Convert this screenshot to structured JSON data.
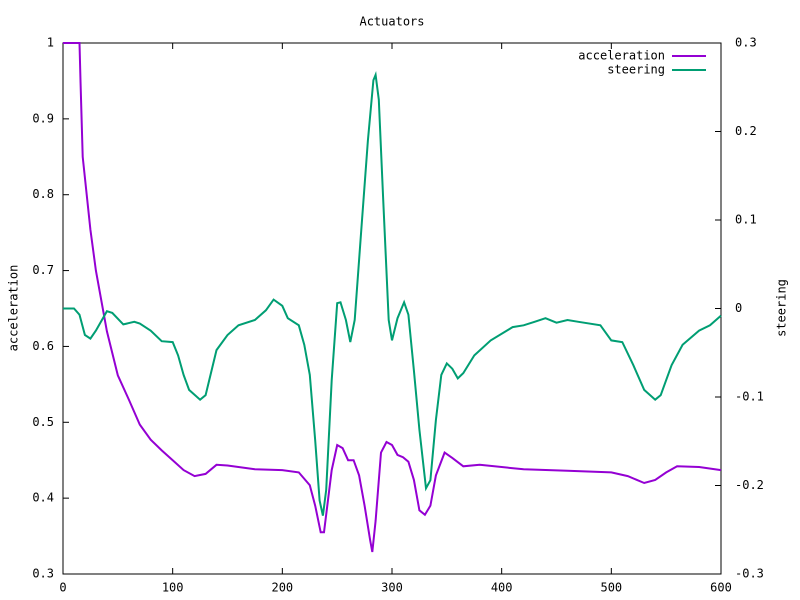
{
  "chart_data": {
    "type": "line",
    "title": "Actuators",
    "y_label": "acceleration",
    "y2_label": "steering",
    "xlim": [
      0,
      600
    ],
    "xticks": [
      0,
      100,
      200,
      300,
      400,
      500,
      600
    ],
    "ylim": [
      0.3,
      1
    ],
    "yticks": [
      0.3,
      0.4,
      0.5,
      0.6,
      0.7,
      0.8,
      0.9,
      1
    ],
    "y2lim": [
      -0.3,
      0.3
    ],
    "y2ticks": [
      -0.3,
      -0.2,
      -0.1,
      0,
      0.1,
      0.2,
      0.3
    ],
    "legend": "top-right",
    "grid": false,
    "series": [
      {
        "name": "acceleration",
        "color": "#9400d3",
        "x": [
          0,
          15,
          16,
          18,
          25,
          30,
          40,
          50,
          60,
          70,
          80,
          90,
          100,
          110,
          120,
          130,
          140,
          150,
          175,
          200,
          215,
          225,
          230,
          235,
          238,
          245,
          250,
          255,
          260,
          265,
          270,
          275,
          280,
          282,
          285,
          290,
          295,
          300,
          305,
          310,
          315,
          320,
          325,
          330,
          335,
          340,
          348,
          355,
          365,
          380,
          420,
          460,
          500,
          515,
          530,
          540,
          550,
          560,
          580,
          600
        ],
        "values": [
          1.0,
          1.0,
          0.95,
          0.85,
          0.754,
          0.7,
          0.62,
          0.562,
          0.53,
          0.497,
          0.477,
          0.463,
          0.45,
          0.437,
          0.429,
          0.432,
          0.444,
          0.443,
          0.438,
          0.437,
          0.434,
          0.417,
          0.39,
          0.355,
          0.355,
          0.437,
          0.47,
          0.466,
          0.45,
          0.45,
          0.43,
          0.39,
          0.345,
          0.329,
          0.37,
          0.46,
          0.474,
          0.47,
          0.457,
          0.454,
          0.448,
          0.424,
          0.384,
          0.378,
          0.39,
          0.43,
          0.46,
          0.453,
          0.442,
          0.444,
          0.438,
          0.436,
          0.434,
          0.429,
          0.42,
          0.424,
          0.434,
          0.442,
          0.441,
          0.437
        ]
      },
      {
        "name": "steering",
        "color": "#009e73",
        "axis": "y2",
        "x": [
          0,
          10,
          15,
          20,
          25,
          30,
          40,
          45,
          55,
          65,
          70,
          80,
          90,
          100,
          105,
          110,
          115,
          125,
          130,
          140,
          150,
          160,
          175,
          185,
          192,
          200,
          205,
          215,
          220,
          225,
          230,
          234,
          237,
          240,
          245,
          250,
          253,
          258,
          262,
          266,
          272,
          278,
          283,
          285,
          288,
          292,
          297,
          300,
          305,
          311,
          315,
          320,
          325,
          331,
          335,
          340,
          345,
          350,
          355,
          360,
          365,
          375,
          390,
          410,
          420,
          430,
          440,
          450,
          460,
          470,
          490,
          500,
          510,
          520,
          530,
          540,
          545,
          555,
          565,
          580,
          590,
          600
        ],
        "values": [
          0.0,
          0.0,
          -0.007,
          -0.03,
          -0.034,
          -0.025,
          -0.003,
          -0.005,
          -0.018,
          -0.015,
          -0.017,
          -0.025,
          -0.037,
          -0.038,
          -0.053,
          -0.075,
          -0.092,
          -0.103,
          -0.098,
          -0.047,
          -0.03,
          -0.019,
          -0.013,
          -0.002,
          0.01,
          0.003,
          -0.011,
          -0.019,
          -0.041,
          -0.075,
          -0.149,
          -0.217,
          -0.234,
          -0.205,
          -0.081,
          0.006,
          0.007,
          -0.013,
          -0.038,
          -0.013,
          0.089,
          0.19,
          0.258,
          0.264,
          0.236,
          0.123,
          -0.013,
          -0.036,
          -0.011,
          0.007,
          -0.007,
          -0.07,
          -0.137,
          -0.203,
          -0.194,
          -0.126,
          -0.075,
          -0.062,
          -0.068,
          -0.079,
          -0.073,
          -0.053,
          -0.036,
          -0.021,
          -0.019,
          -0.015,
          -0.011,
          -0.016,
          -0.013,
          -0.015,
          -0.019,
          -0.036,
          -0.038,
          -0.064,
          -0.092,
          -0.103,
          -0.098,
          -0.064,
          -0.041,
          -0.025,
          -0.019,
          -0.008
        ]
      }
    ]
  }
}
